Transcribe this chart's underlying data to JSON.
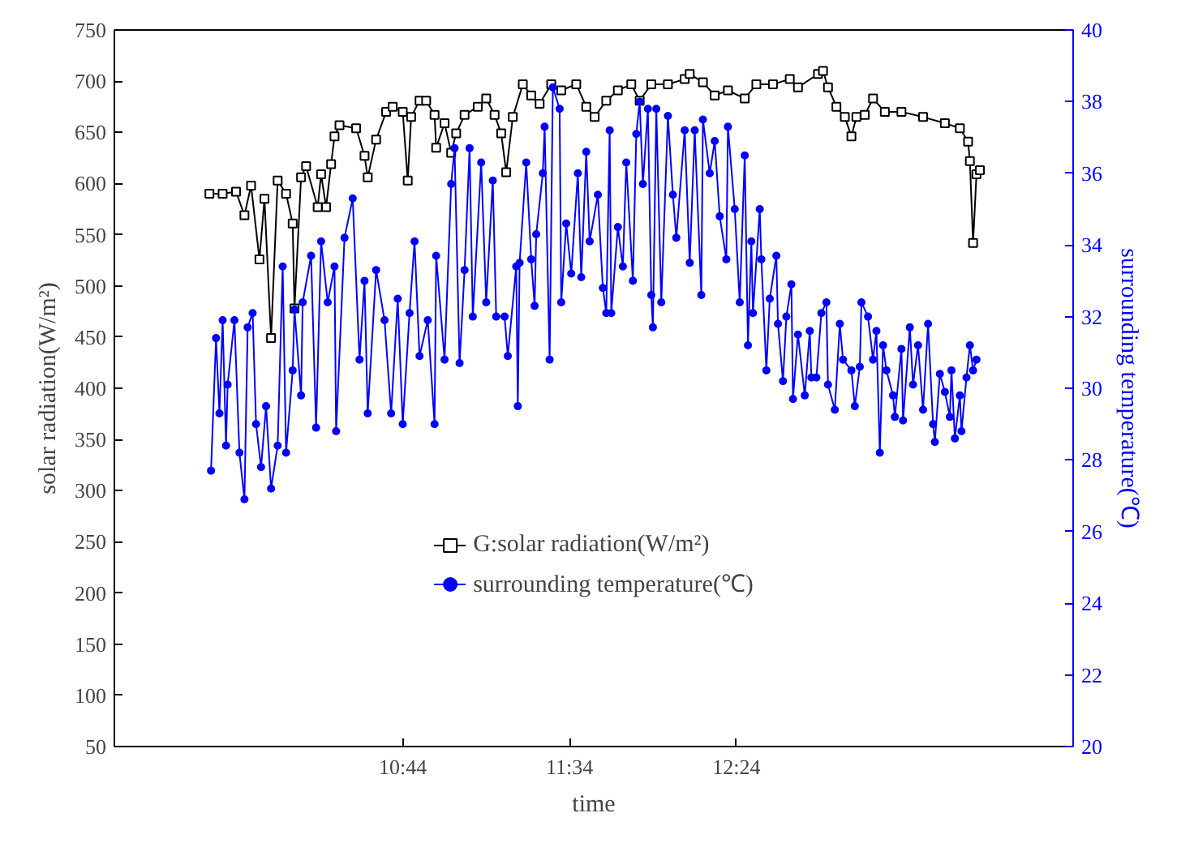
{
  "chart_data": {
    "type": "line",
    "xlabel": "time",
    "ylabel": "solar radiation(W/m²)",
    "y2label": "surrounding temperature(℃)",
    "xlim": [
      9.292,
      14.083
    ],
    "xticks": [
      {
        "value": 10.7333,
        "label": "10:44"
      },
      {
        "value": 11.5667,
        "label": "11:34"
      },
      {
        "value": 12.4,
        "label": "12:24"
      }
    ],
    "ylim": [
      50,
      750
    ],
    "yticks": [
      50,
      100,
      150,
      200,
      250,
      300,
      350,
      400,
      450,
      500,
      550,
      600,
      650,
      700,
      750
    ],
    "y2lim": [
      20,
      40
    ],
    "y2ticks": [
      20,
      22,
      24,
      26,
      28,
      30,
      32,
      34,
      36,
      38,
      40
    ],
    "grid": false,
    "legend": "bottom",
    "line_style": "solid",
    "series": [
      {
        "name": "G:solar radiation(W/m²)",
        "color": "#000000",
        "marker": "square",
        "axis": "y",
        "x": [
          9.767,
          9.833,
          9.9,
          9.942,
          9.975,
          10.017,
          10.042,
          10.075,
          10.108,
          10.15,
          10.183,
          10.192,
          10.225,
          10.25,
          10.308,
          10.325,
          10.35,
          10.375,
          10.392,
          10.417,
          10.5,
          10.542,
          10.558,
          10.6,
          10.65,
          10.683,
          10.733,
          10.758,
          10.775,
          10.817,
          10.85,
          10.892,
          10.9,
          10.942,
          10.975,
          11.0,
          11.042,
          11.108,
          11.15,
          11.192,
          11.225,
          11.25,
          11.283,
          11.333,
          11.375,
          11.417,
          11.475,
          11.525,
          11.6,
          11.65,
          11.692,
          11.75,
          11.808,
          11.875,
          11.917,
          11.975,
          12.058,
          12.142,
          12.167,
          12.233,
          12.292,
          12.358,
          12.442,
          12.5,
          12.583,
          12.667,
          12.708,
          12.808,
          12.833,
          12.858,
          12.9,
          12.942,
          12.975,
          13.0,
          13.042,
          13.083,
          13.142,
          13.225,
          13.333,
          13.442,
          13.517,
          13.558,
          13.567,
          13.583,
          13.6,
          13.617
        ],
        "values": [
          590,
          590,
          592,
          569,
          598,
          526,
          585,
          449,
          603,
          590,
          561,
          478,
          606,
          617,
          577,
          609,
          577,
          619,
          646,
          657,
          654,
          627,
          606,
          643,
          670,
          675,
          670,
          603,
          665,
          681,
          681,
          667,
          635,
          659,
          630,
          649,
          667,
          675,
          683,
          667,
          649,
          611,
          665,
          697,
          686,
          678,
          697,
          691,
          697,
          675,
          665,
          681,
          691,
          697,
          681,
          697,
          697,
          702,
          707,
          699,
          686,
          691,
          683,
          697,
          697,
          702,
          694,
          707,
          710,
          694,
          675,
          665,
          646,
          665,
          667,
          683,
          670,
          670,
          665,
          659,
          654,
          641,
          622,
          542,
          609,
          613
        ]
      },
      {
        "name": "surrounding temperature(℃)",
        "color": "#0000ff",
        "marker": "circle",
        "axis": "y2",
        "x": [
          9.775,
          9.8,
          9.817,
          9.833,
          9.85,
          9.858,
          9.892,
          9.917,
          9.942,
          9.958,
          9.983,
          10.0,
          10.025,
          10.05,
          10.075,
          10.108,
          10.133,
          10.15,
          10.183,
          10.192,
          10.225,
          10.233,
          10.275,
          10.3,
          10.325,
          10.358,
          10.392,
          10.4,
          10.442,
          10.483,
          10.517,
          10.542,
          10.558,
          10.6,
          10.642,
          10.675,
          10.708,
          10.733,
          10.767,
          10.792,
          10.817,
          10.858,
          10.892,
          10.9,
          10.942,
          10.975,
          10.992,
          11.017,
          11.042,
          11.067,
          11.083,
          11.125,
          11.15,
          11.183,
          11.2,
          11.242,
          11.258,
          11.3,
          11.308,
          11.317,
          11.35,
          11.375,
          11.392,
          11.4,
          11.433,
          11.442,
          11.467,
          11.483,
          11.517,
          11.525,
          11.55,
          11.575,
          11.608,
          11.625,
          11.65,
          11.667,
          11.708,
          11.733,
          11.75,
          11.767,
          11.775,
          11.808,
          11.833,
          11.85,
          11.883,
          11.9,
          11.917,
          11.933,
          11.958,
          11.975,
          11.983,
          12.0,
          12.025,
          12.058,
          12.083,
          12.1,
          12.142,
          12.167,
          12.192,
          12.225,
          12.233,
          12.267,
          12.292,
          12.317,
          12.35,
          12.358,
          12.392,
          12.417,
          12.442,
          12.458,
          12.475,
          12.483,
          12.517,
          12.525,
          12.55,
          12.567,
          12.6,
          12.608,
          12.633,
          12.65,
          12.675,
          12.683,
          12.708,
          12.742,
          12.767,
          12.775,
          12.8,
          12.825,
          12.85,
          12.858,
          12.892,
          12.917,
          12.933,
          12.975,
          12.992,
          13.017,
          13.025,
          13.058,
          13.083,
          13.1,
          13.117,
          13.133,
          13.15,
          13.183,
          13.192,
          13.225,
          13.233,
          13.267,
          13.283,
          13.308,
          13.333,
          13.358,
          13.383,
          13.392,
          13.417,
          13.442,
          13.467,
          13.475,
          13.492,
          13.517,
          13.525,
          13.55,
          13.567,
          13.583,
          13.6
        ],
        "values": [
          27.7,
          31.4,
          29.3,
          31.9,
          28.4,
          30.1,
          31.9,
          28.2,
          26.9,
          31.7,
          32.1,
          29.0,
          27.8,
          29.5,
          27.2,
          28.4,
          33.4,
          28.2,
          30.5,
          32.2,
          29.8,
          32.4,
          33.7,
          28.9,
          34.1,
          32.4,
          33.4,
          28.8,
          34.2,
          35.3,
          30.8,
          33.0,
          29.3,
          33.3,
          31.9,
          29.3,
          32.5,
          29.0,
          32.1,
          34.1,
          30.9,
          31.9,
          29.0,
          33.7,
          30.8,
          35.7,
          36.7,
          30.7,
          33.3,
          36.7,
          32.0,
          36.3,
          32.4,
          35.8,
          32.0,
          32.0,
          30.9,
          33.4,
          29.5,
          33.5,
          36.3,
          33.6,
          32.3,
          34.3,
          36.0,
          37.3,
          30.8,
          38.4,
          37.8,
          32.4,
          34.6,
          33.2,
          36.0,
          33.1,
          36.6,
          34.1,
          35.4,
          32.8,
          32.1,
          37.2,
          32.1,
          34.5,
          33.4,
          36.3,
          33.0,
          37.1,
          38.0,
          35.7,
          37.8,
          32.6,
          31.7,
          37.8,
          32.4,
          37.6,
          35.4,
          34.2,
          37.2,
          33.5,
          37.2,
          32.6,
          37.5,
          36.0,
          36.9,
          34.8,
          33.6,
          37.3,
          35.0,
          32.4,
          36.5,
          31.2,
          34.1,
          32.1,
          35.0,
          33.6,
          30.5,
          32.5,
          33.7,
          31.8,
          30.2,
          32.0,
          32.9,
          29.7,
          31.5,
          29.8,
          31.6,
          30.3,
          30.3,
          32.1,
          32.4,
          30.1,
          29.4,
          31.8,
          30.8,
          30.5,
          29.5,
          30.6,
          32.4,
          32.0,
          30.8,
          31.6,
          28.2,
          31.2,
          30.5,
          29.8,
          29.2,
          31.1,
          29.1,
          31.7,
          30.1,
          31.2,
          29.4,
          31.8,
          29.0,
          28.5,
          30.4,
          29.9,
          29.2,
          30.5,
          28.6,
          29.8,
          28.8,
          30.3,
          31.2,
          30.5,
          30.8
        ]
      }
    ]
  }
}
